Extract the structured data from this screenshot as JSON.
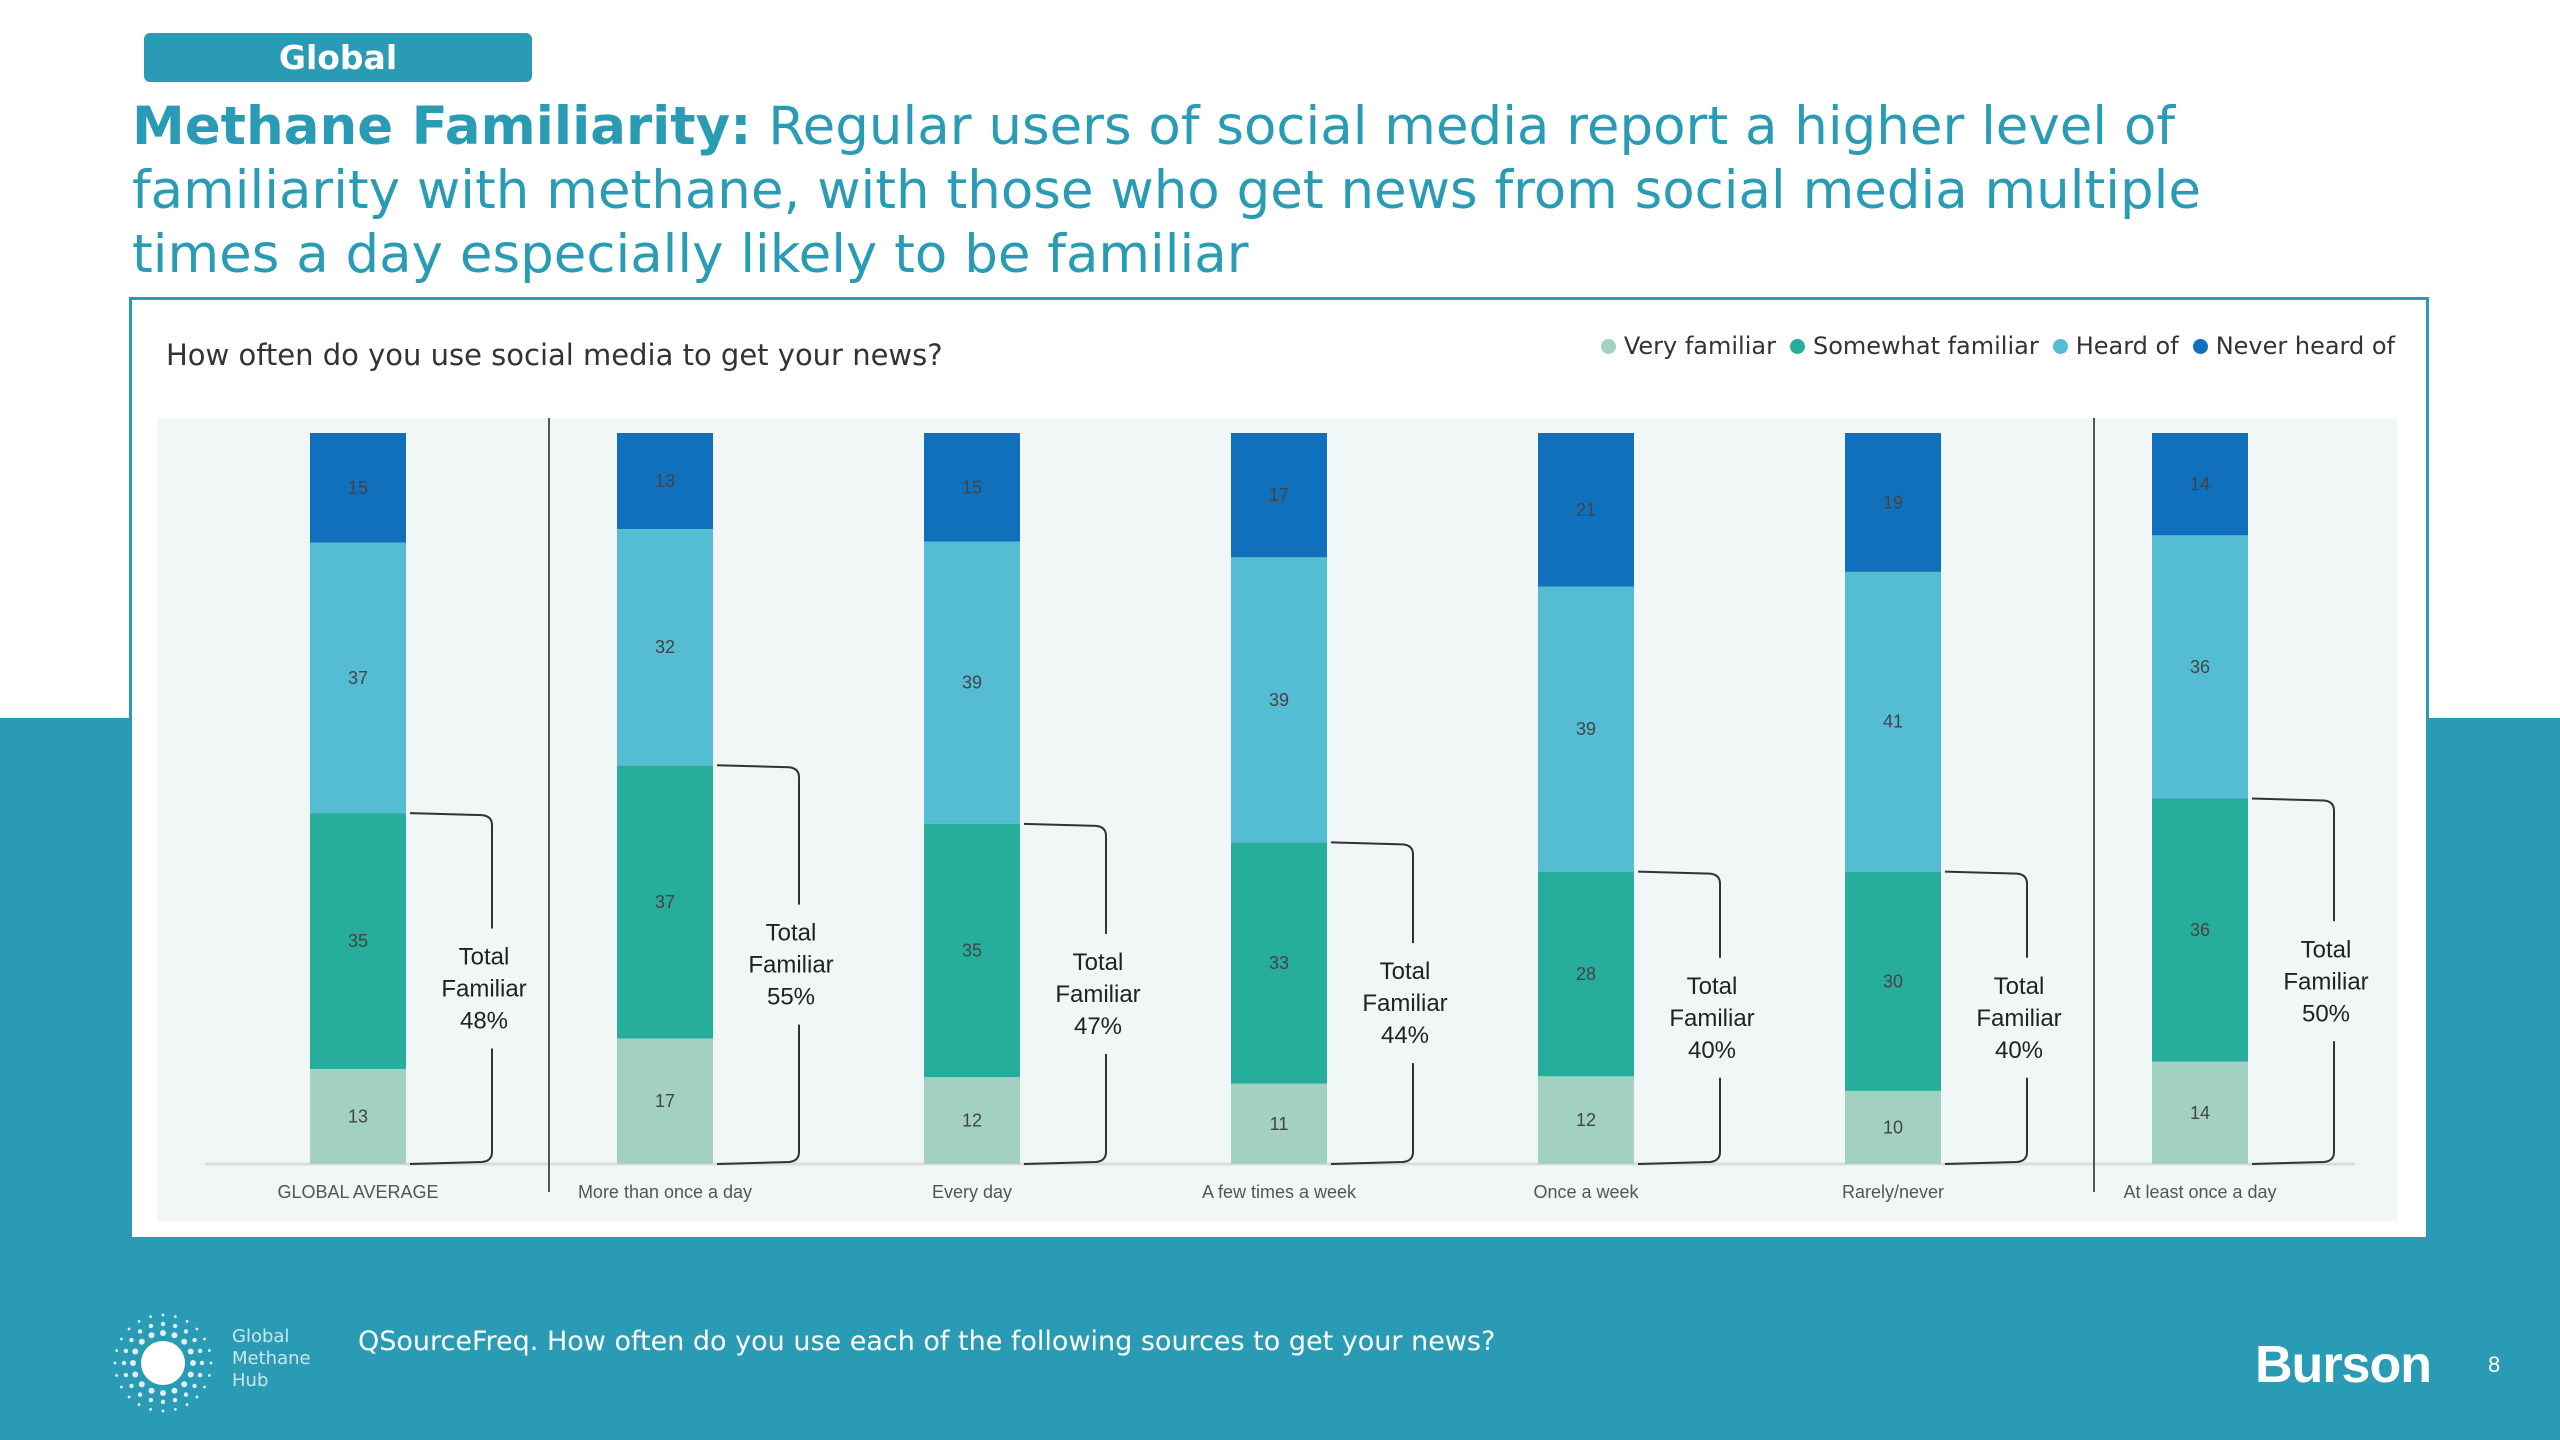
{
  "header": {
    "region_pill": "Global",
    "title_bold": "Methane Familiarity:",
    "title_rest": " Regular users of social media report a higher level of familiarity with methane, with those who get news from social media multiple times a day especially likely to be familiar"
  },
  "footer": {
    "question": "QSourceFreq. How often do you use each of the following sources to get your news?",
    "logo_text": [
      "Global",
      "Methane",
      "Hub"
    ],
    "brand": "Burson",
    "page_number": "8"
  },
  "colors": {
    "accent": "#2a9bb5",
    "very_familiar": "#a2d1c4",
    "somewhat_familiar": "#26ad9b",
    "heard_of": "#54bcd3",
    "never_heard_of": "#1170bc",
    "plot_bg": "#f1f6f6"
  },
  "chart_data": {
    "type": "bar",
    "stacked": true,
    "title": "How often do you use social media to get your news?",
    "legend_position": "top-right",
    "ylim": [
      0,
      100
    ],
    "categories": [
      "GLOBAL AVERAGE",
      "More than once a day",
      "Every day",
      "A few times a week",
      "Once a week",
      "Rarely/never",
      "At least once a day"
    ],
    "series": [
      {
        "name": "Very familiar",
        "values": [
          13,
          17,
          12,
          11,
          12,
          10,
          14
        ]
      },
      {
        "name": "Somewhat familiar",
        "values": [
          35,
          37,
          35,
          33,
          28,
          30,
          36
        ]
      },
      {
        "name": "Heard of",
        "values": [
          37,
          32,
          39,
          39,
          39,
          41,
          36
        ]
      },
      {
        "name": "Never heard of",
        "values": [
          15,
          13,
          15,
          17,
          21,
          19,
          14
        ]
      }
    ],
    "annotation_label": [
      "Total",
      "Familiar"
    ],
    "total_familiar": [
      "48%",
      "55%",
      "47%",
      "44%",
      "40%",
      "40%",
      "50%"
    ],
    "group_separators_after": [
      "GLOBAL AVERAGE",
      "Rarely/never"
    ]
  }
}
